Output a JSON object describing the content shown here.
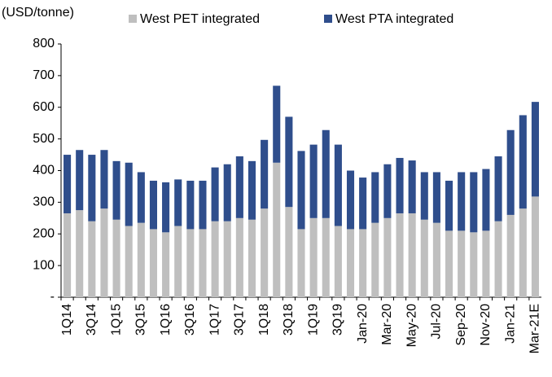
{
  "chart_data": {
    "type": "stacked_bar",
    "y_axis_label": "(USD/tonne)",
    "categories": [
      "1Q14",
      null,
      "3Q14",
      null,
      "1Q15",
      null,
      "3Q15",
      null,
      "1Q16",
      null,
      "3Q16",
      null,
      "1Q17",
      null,
      "3Q17",
      null,
      "1Q18",
      null,
      "3Q18",
      null,
      "1Q19",
      null,
      "3Q19",
      null,
      "Jan-20",
      null,
      "Mar-20",
      null,
      "May-20",
      null,
      "Jul-20",
      null,
      "Sep-20",
      null,
      "Nov-20",
      null,
      "Jan-21",
      null,
      "Mar-21E"
    ],
    "series": [
      {
        "name": "West PET integrated",
        "color": "#bfbfbf",
        "values": [
          265,
          275,
          240,
          280,
          245,
          225,
          235,
          215,
          205,
          225,
          215,
          215,
          240,
          240,
          250,
          245,
          280,
          425,
          285,
          215,
          250,
          250,
          225,
          215,
          215,
          235,
          250,
          265,
          265,
          245,
          235,
          210,
          210,
          205,
          210,
          240,
          260,
          280,
          318
        ]
      },
      {
        "name": "West PTA integrated",
        "color": "#2f4e8c",
        "values": [
          185,
          190,
          210,
          185,
          185,
          200,
          160,
          153,
          158,
          147,
          153,
          153,
          170,
          180,
          195,
          185,
          217,
          243,
          285,
          247,
          232,
          278,
          257,
          185,
          163,
          160,
          170,
          175,
          167,
          150,
          160,
          158,
          185,
          190,
          195,
          205,
          268,
          295,
          299
        ]
      }
    ],
    "ylim": [
      0,
      800
    ],
    "yticks": [
      {
        "value": 0,
        "label": "-"
      },
      100,
      200,
      300,
      400,
      500,
      600,
      700,
      800
    ],
    "grid": false,
    "legend": "top"
  }
}
